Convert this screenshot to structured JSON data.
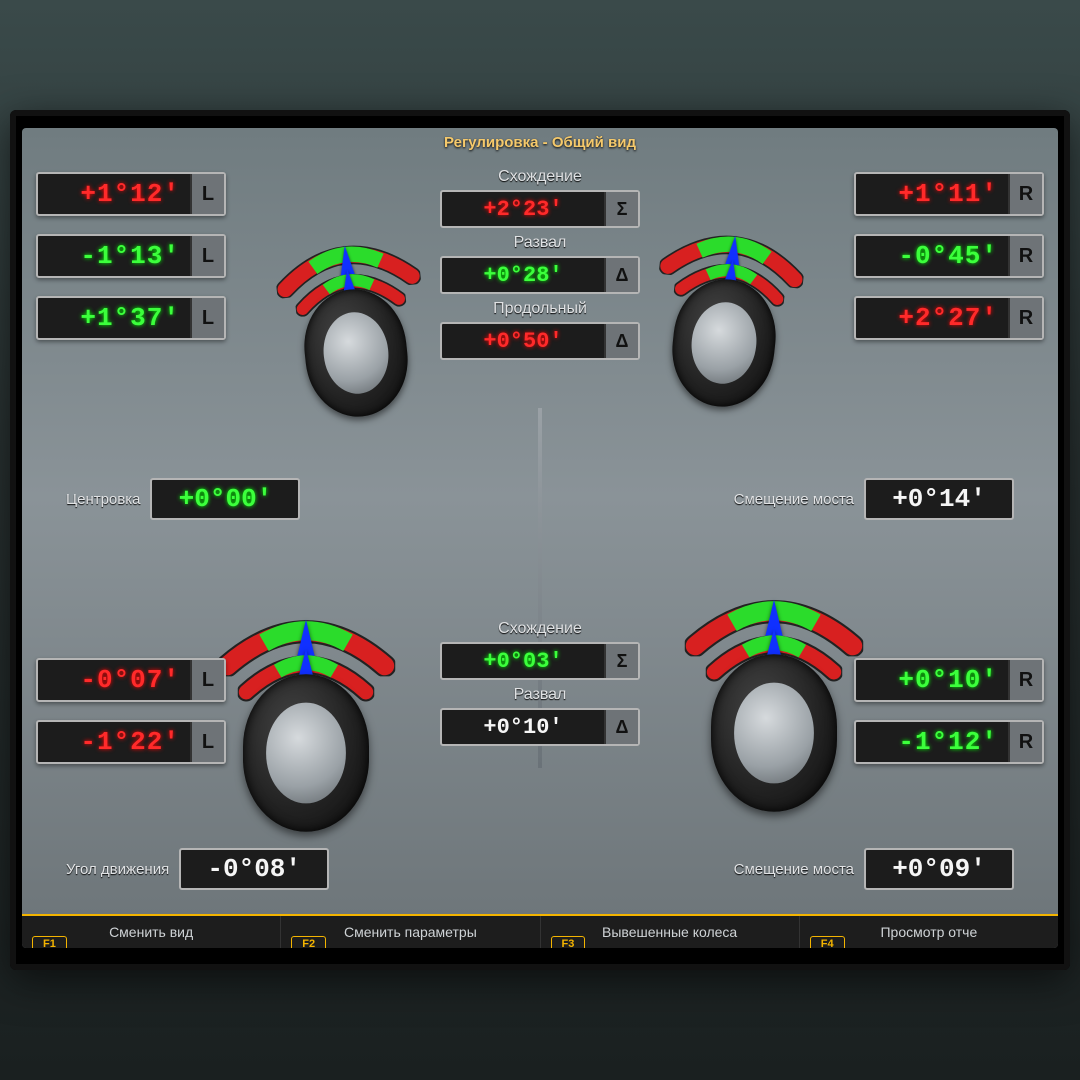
{
  "title": "Регулировка - Общий вид",
  "colors": {
    "green": "#3cff3c",
    "red": "#ff2a2a",
    "white": "#f5f5f5",
    "accent": "#f4b400",
    "box_bg": "#1c1c1c",
    "box_border": "#b5b5b5",
    "screen_grad_top": "#707c80",
    "screen_grad_bot": "#6c7478",
    "arrow": "#1030ff",
    "gauge_green": "#2bdc2b",
    "gauge_red": "#d82020"
  },
  "front_left": [
    {
      "value": "+1°12'",
      "color": "red",
      "tag": "L"
    },
    {
      "value": "-1°13'",
      "color": "green",
      "tag": "L"
    },
    {
      "value": "+1°37'",
      "color": "green",
      "tag": "L"
    }
  ],
  "front_right": [
    {
      "value": "+1°11'",
      "color": "red",
      "tag": "R"
    },
    {
      "value": "-0°45'",
      "color": "green",
      "tag": "R"
    },
    {
      "value": "+2°27'",
      "color": "red",
      "tag": "R"
    }
  ],
  "rear_left": [
    {
      "value": "-0°07'",
      "color": "red",
      "tag": "L"
    },
    {
      "value": "-1°22'",
      "color": "red",
      "tag": "L"
    }
  ],
  "rear_right": [
    {
      "value": "+0°10'",
      "color": "green",
      "tag": "R"
    },
    {
      "value": "-1°12'",
      "color": "green",
      "tag": "R"
    }
  ],
  "center_top": [
    {
      "label": "Схождение",
      "value": "+2°23'",
      "color": "red",
      "sym": "Σ"
    },
    {
      "label": "Развал",
      "value": "+0°28'",
      "color": "green",
      "sym": "Δ"
    },
    {
      "label": "Продольный",
      "value": "+0°50'",
      "color": "red",
      "sym": "Δ"
    }
  ],
  "center_bottom": [
    {
      "label": "Схождение",
      "value": "+0°03'",
      "color": "green",
      "sym": "Σ"
    },
    {
      "label": "Развал",
      "value": "+0°10'",
      "color": "white",
      "sym": "Δ"
    }
  ],
  "mid_left": {
    "label": "Центровка",
    "value": "+0°00'",
    "color": "green"
  },
  "mid_right": {
    "label": "Смещение моста",
    "value": "+0°14'",
    "color": "white"
  },
  "low_left": {
    "label": "Угол движения",
    "value": "-0°08'",
    "color": "white"
  },
  "low_right": {
    "label": "Смещение моста",
    "value": "+0°09'",
    "color": "white"
  },
  "func": [
    {
      "key": "F1",
      "label": "Сменить вид"
    },
    {
      "key": "F2",
      "label": "Сменить параметры"
    },
    {
      "key": "F3",
      "label": "Вывешенные колеса"
    },
    {
      "key": "F4",
      "label": "Просмотр отче"
    }
  ]
}
